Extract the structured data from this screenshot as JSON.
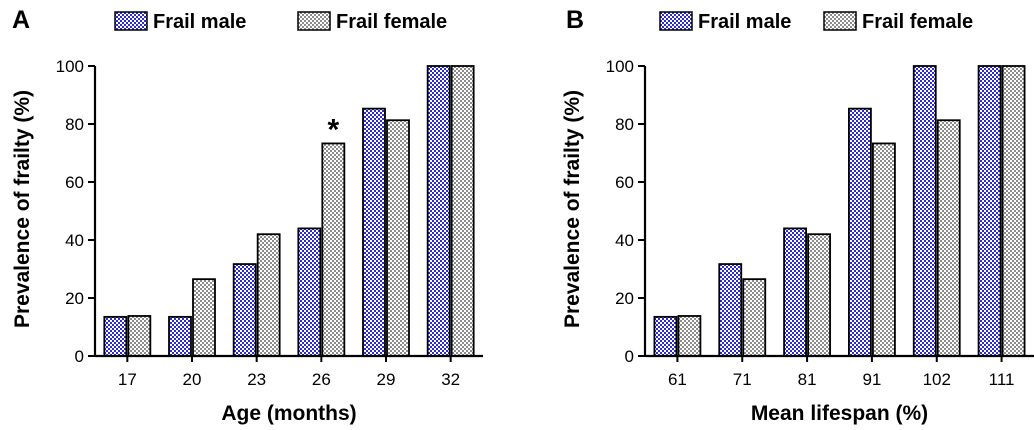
{
  "chart_data": [
    {
      "type": "bar",
      "panel": "A",
      "categories": [
        "17",
        "20",
        "23",
        "26",
        "29",
        "32"
      ],
      "series": [
        {
          "name": "Frail male",
          "values": [
            13.5,
            13.5,
            31.7,
            44,
            85.3,
            100
          ]
        },
        {
          "name": "Frail female",
          "values": [
            13.8,
            26.5,
            42,
            73.3,
            81.3,
            100
          ]
        }
      ],
      "xlabel": "Age (months)",
      "ylabel": "Prevalence of frailty (%)",
      "ylim": [
        0,
        100
      ],
      "yticks": [
        "0",
        "20",
        "40",
        "60",
        "80",
        "100"
      ],
      "annotations": [
        {
          "text": "*",
          "category": "26",
          "series": "Frail female"
        }
      ],
      "legend_position": "top",
      "grid": false
    },
    {
      "type": "bar",
      "panel": "B",
      "categories": [
        "61",
        "71",
        "81",
        "91",
        "102",
        "111"
      ],
      "series": [
        {
          "name": "Frail male",
          "values": [
            13.5,
            31.7,
            44,
            85.3,
            100,
            100
          ]
        },
        {
          "name": "Frail female",
          "values": [
            13.8,
            26.5,
            42,
            73.3,
            81.3,
            100
          ]
        }
      ],
      "xlabel": "Mean lifespan (%)",
      "ylabel": "Prevalence of frailty (%)",
      "ylim": [
        0,
        100
      ],
      "yticks": [
        "0",
        "20",
        "40",
        "60",
        "80",
        "100"
      ],
      "annotations": [],
      "legend_position": "top",
      "grid": false
    }
  ],
  "colors": {
    "male_fill_a": "#2b2bd6",
    "male_fill_b": "#ffffff",
    "female_fill_a": "#8c8c8c",
    "female_fill_b": "#ffffff",
    "stroke": "#000000"
  }
}
